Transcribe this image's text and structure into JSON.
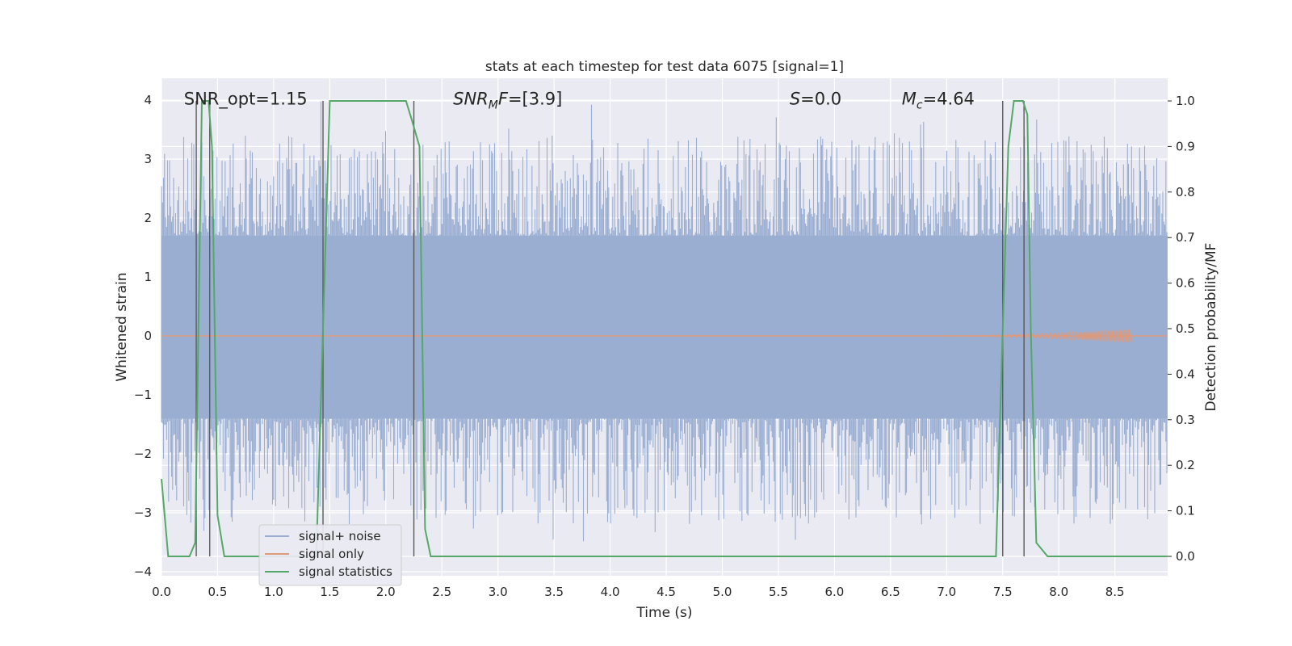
{
  "chart_data": {
    "type": "line",
    "title": "stats at each timestep for test data 6075 [signal=1]",
    "xlabel": "Time (s)",
    "ylabel": "Whitened strain",
    "y2label": "Detection probability/MF",
    "xlim": [
      0.0,
      8.97
    ],
    "ylim": [
      -4.1,
      4.35
    ],
    "y2lim": [
      -0.045,
      1.045
    ],
    "x_ticks": [
      "0.0",
      "0.5",
      "1.0",
      "1.5",
      "2.0",
      "2.5",
      "3.0",
      "3.5",
      "4.0",
      "4.5",
      "5.0",
      "5.5",
      "6.0",
      "6.5",
      "7.0",
      "7.5",
      "8.0",
      "8.5"
    ],
    "y_ticks": [
      "4",
      "3",
      "2",
      "1",
      "0",
      "−1",
      "−2",
      "−3",
      "−4"
    ],
    "y2_ticks": [
      "1.0",
      "0.9",
      "0.8",
      "0.7",
      "0.6",
      "0.5",
      "0.4",
      "0.3",
      "0.2",
      "0.1",
      "0.0"
    ],
    "grid": true,
    "legend_position": "lower-left",
    "annotations": [
      {
        "text": "SNR_opt=1.15",
        "x": 0.2,
        "y": 4.02
      },
      {
        "text": "SNR",
        "sub": "M",
        "rest": "F=[3.9]",
        "x": 2.6,
        "y": 4.02
      },
      {
        "text": "S",
        "rest": "=0.0",
        "x": 5.6,
        "y": 4.02
      },
      {
        "text": "M",
        "sub": "c",
        "rest": "=4.64",
        "x": 6.6,
        "y": 4.02
      }
    ],
    "series": [
      {
        "name": "signal+ noise",
        "color": "#9aaed2",
        "style": "dense-noise",
        "x_range": [
          0.0,
          8.97
        ],
        "envelope_core": [
          -1.4,
          1.7
        ],
        "typical_peaks": [
          -2.6,
          2.6
        ],
        "max_peak": 4.0,
        "min_peak": -3.7
      },
      {
        "name": "signal only",
        "color": "#dd9a7c",
        "style": "chirp",
        "y": 0.0,
        "chirp_start_x": 7.0,
        "chirp_end_x": 8.65,
        "max_amplitude": 0.12
      },
      {
        "name": "signal statistics",
        "color": "#55a868",
        "axis": "right",
        "x": [
          0.0,
          0.06,
          0.15,
          0.25,
          0.3,
          0.36,
          0.42,
          0.45,
          0.5,
          0.56,
          0.65,
          1.0,
          1.3,
          1.38,
          1.44,
          1.5,
          1.6,
          2.0,
          2.18,
          2.23,
          2.3,
          2.35,
          2.4,
          2.6,
          3.0,
          7.0,
          7.44,
          7.5,
          7.55,
          7.6,
          7.68,
          7.72,
          7.75,
          7.8,
          7.9,
          8.2,
          8.6,
          8.97
        ],
        "values": [
          0.17,
          0.0,
          0.0,
          0.0,
          0.03,
          1.0,
          1.0,
          0.9,
          0.09,
          0.0,
          0.0,
          0.0,
          0.0,
          0.0,
          0.5,
          1.0,
          1.0,
          1.0,
          1.0,
          0.96,
          0.9,
          0.06,
          0.0,
          0.0,
          0.0,
          0.0,
          0.0,
          0.5,
          0.9,
          1.0,
          1.0,
          0.97,
          0.5,
          0.03,
          0.0,
          0.0,
          0.0,
          0.0
        ]
      }
    ],
    "vertical_markers": [
      0.31,
      0.43,
      1.44,
      2.25,
      7.5,
      7.69
    ]
  }
}
